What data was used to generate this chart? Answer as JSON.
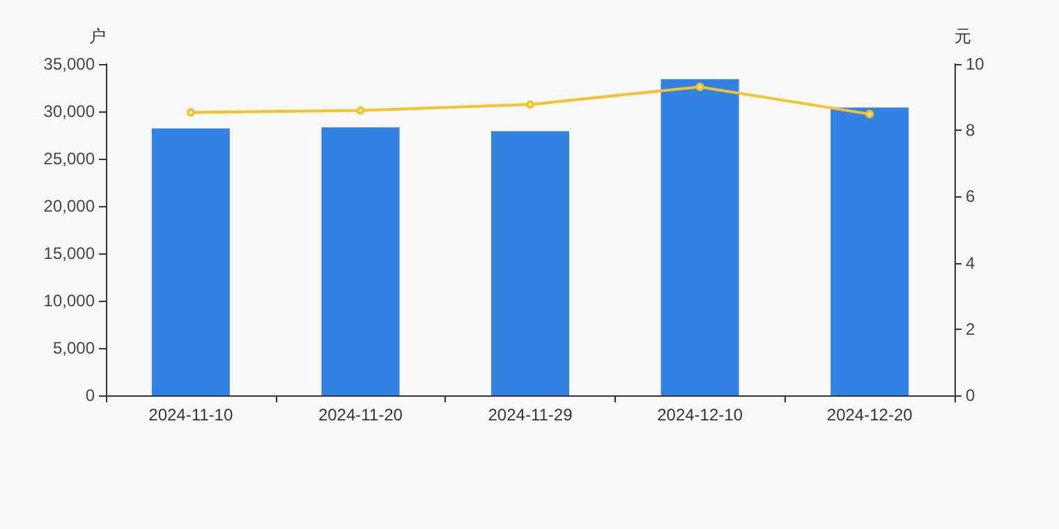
{
  "chart_data": {
    "type": "bar",
    "ylabel": "户",
    "y2label": "元",
    "categories": [
      "2024-11-10",
      "2024-11-20",
      "2024-11-29",
      "2024-12-10",
      "2024-12-20"
    ],
    "series": [
      {
        "color": "#3182e2",
        "values": [
          28200,
          28300,
          27900,
          33400,
          30400
        ]
      },
      {
        "type": "line",
        "axis": "y2",
        "color": "#f5c324",
        "values": [
          8.54,
          8.6,
          8.78,
          9.31,
          8.49
        ],
        "marker": "circle"
      }
    ],
    "ylim": [
      0,
      35000
    ],
    "yticks": [
      0,
      {
        "value": 5000,
        "label": "5,000"
      },
      {
        "value": 10000,
        "label": "10,000"
      },
      {
        "value": 15000,
        "label": "15,000"
      },
      {
        "value": 20000,
        "label": "20,000"
      },
      {
        "value": 25000,
        "label": "25,000"
      },
      {
        "value": 30000,
        "label": "30,000"
      },
      {
        "value": 35000,
        "label": "35,000"
      }
    ],
    "y2lim": [
      0,
      10
    ],
    "y2ticks": [
      0,
      2,
      4,
      6,
      8,
      10
    ],
    "grid": false
  }
}
